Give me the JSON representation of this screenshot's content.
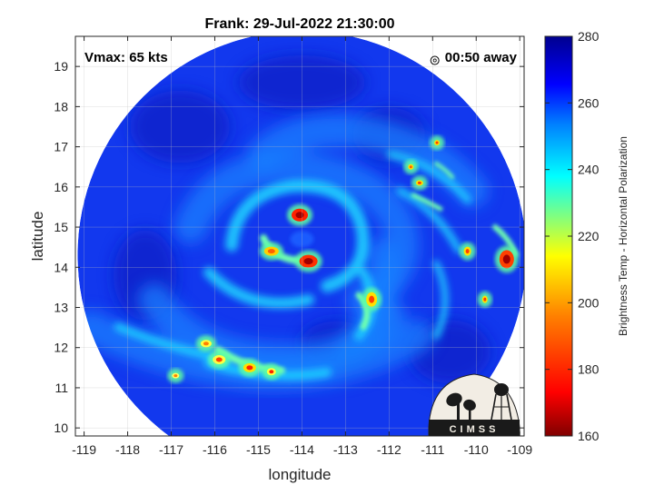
{
  "chart_data": {
    "type": "heatmap",
    "title": "Frank: 29-Jul-2022 21:30:00",
    "xlabel": "longitude",
    "ylabel": "latitude",
    "xlim": [
      -119.2,
      -108.9
    ],
    "ylim": [
      9.8,
      19.75
    ],
    "x_ticks": [
      -119,
      -118,
      -117,
      -116,
      -115,
      -114,
      -113,
      -112,
      -111,
      -110,
      -109
    ],
    "y_ticks": [
      10,
      11,
      12,
      13,
      14,
      15,
      16,
      17,
      18,
      19
    ],
    "x_tick_labels": [
      "-119",
      "-118",
      "-117",
      "-116",
      "-115",
      "-114",
      "-113",
      "-112",
      "-111",
      "-110",
      "-109"
    ],
    "y_tick_labels": [
      "10",
      "11",
      "12",
      "13",
      "14",
      "15",
      "16",
      "17",
      "18",
      "19"
    ],
    "grid": true,
    "annotations": {
      "vmax": "Vmax: 65 kts",
      "time_away": "00:50 away"
    },
    "storm_center": {
      "lon": -113.9,
      "lat": 14.3
    },
    "swath_center": {
      "lon": -114.0,
      "lat": 14.3
    },
    "colorbar": {
      "label": "Brightness Temp - Horizontal Polarization",
      "range": [
        160,
        280
      ],
      "ticks": [
        160,
        180,
        200,
        220,
        240,
        260,
        280
      ],
      "tick_labels": [
        "160",
        "180",
        "200",
        "220",
        "240",
        "260",
        "280"
      ],
      "colors": [
        "#800000",
        "#ff0000",
        "#ff8000",
        "#ffff00",
        "#80ff80",
        "#00ffff",
        "#0080ff",
        "#0000ff",
        "#00008f"
      ]
    },
    "features": [
      {
        "name": "eyewall-north",
        "lon": -114.05,
        "lat": 15.3,
        "value": 175
      },
      {
        "name": "eyewall-south",
        "lon": -113.85,
        "lat": 14.15,
        "value": 170
      },
      {
        "name": "band-west",
        "lon": -114.9,
        "lat": 14.45,
        "value": 200
      },
      {
        "name": "outer-band-south",
        "lon": -115.2,
        "lat": 11.5,
        "value": 205
      },
      {
        "name": "band-southeast",
        "lon": -112.5,
        "lat": 13.1,
        "value": 200
      },
      {
        "name": "band-east",
        "lon": -109.3,
        "lat": 14.2,
        "value": 175
      }
    ]
  },
  "logo": {
    "text": "CIMSS"
  }
}
